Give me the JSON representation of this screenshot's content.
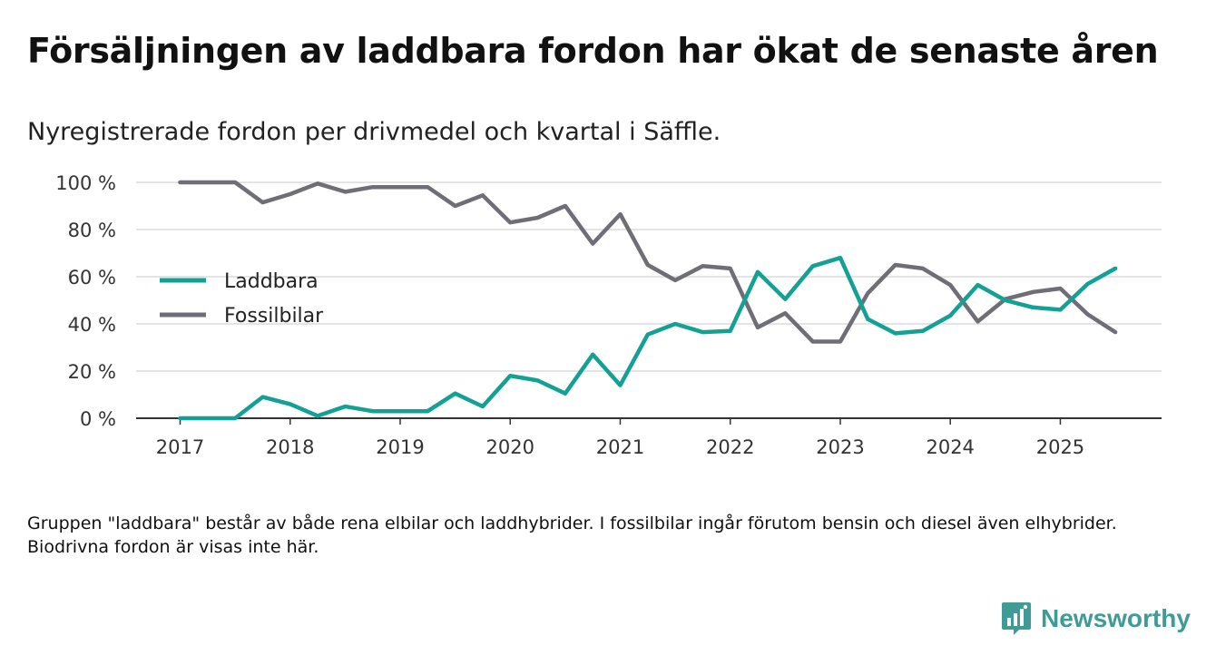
{
  "title": "Försäljningen av laddbara fordon har ökat de senaste åren",
  "subtitle": "Nyregistrerade fordon per drivmedel och kvartal i Säffle.",
  "note": "Gruppen \"laddbara\" består av både rena elbilar och laddhybrider. I fossilbilar ingår förutom bensin och diesel även elhybrider. Biodrivna fordon är visas inte här.",
  "brand": {
    "name": "Newsworthy",
    "icon": "newsworthy-logo-icon",
    "color": "#3e9b96"
  },
  "colors": {
    "laddbara": "#14a195",
    "fossil": "#6f6d75",
    "grid": "#dcdcdc",
    "axis": "#333333"
  },
  "chart_data": {
    "type": "line",
    "title": "Försäljningen av laddbara fordon har ökat de senaste åren",
    "xlabel": "",
    "ylabel": "",
    "x_unit": "year",
    "xlim": [
      2016.6,
      2025.92
    ],
    "ylim": [
      0,
      100
    ],
    "y_ticks": [
      0,
      20,
      40,
      60,
      80,
      100
    ],
    "y_tick_labels": [
      "0 %",
      "20 %",
      "40 %",
      "60 %",
      "80 %",
      "100 %"
    ],
    "x_ticks": [
      2017,
      2018,
      2019,
      2020,
      2021,
      2022,
      2023,
      2024,
      2025
    ],
    "x_tick_labels": [
      "2017",
      "2018",
      "2019",
      "2020",
      "2021",
      "2022",
      "2023",
      "2024",
      "2025"
    ],
    "legend_position": "left",
    "x": [
      2017.0,
      2017.25,
      2017.5,
      2017.75,
      2018.0,
      2018.25,
      2018.5,
      2018.75,
      2019.0,
      2019.25,
      2019.5,
      2019.75,
      2020.0,
      2020.25,
      2020.5,
      2020.75,
      2021.0,
      2021.25,
      2021.5,
      2021.75,
      2022.0,
      2022.25,
      2022.5,
      2022.75,
      2023.0,
      2023.25,
      2023.5,
      2023.75,
      2024.0,
      2024.25,
      2024.5,
      2024.75,
      2025.0,
      2025.25,
      2025.5
    ],
    "series": [
      {
        "name": "Laddbara",
        "key": "laddbara",
        "values": [
          0,
          0,
          0,
          9,
          6,
          1,
          5,
          3,
          3,
          3,
          10.5,
          5,
          18,
          16,
          10.5,
          27,
          14,
          35.5,
          40,
          36.5,
          37,
          62,
          50.5,
          64.5,
          68,
          42,
          36,
          37,
          43.5,
          56.5,
          50,
          47,
          46,
          57,
          63.5
        ]
      },
      {
        "name": "Fossilbilar",
        "key": "fossil",
        "values": [
          100,
          100,
          100,
          91.5,
          95,
          99.5,
          96,
          98,
          98,
          98,
          90,
          94.5,
          83,
          85,
          90,
          74,
          86.5,
          65,
          58.5,
          64.5,
          63.5,
          38.5,
          44.5,
          32.5,
          32.5,
          53,
          65,
          63.5,
          56.5,
          41,
          50.5,
          53.5,
          55,
          44,
          36.5
        ]
      }
    ]
  }
}
